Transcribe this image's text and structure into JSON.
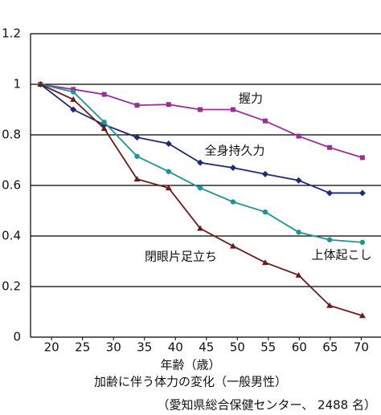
{
  "chart_data": {
    "type": "line",
    "xlabel": "年齢（歳）",
    "subtitle": "加齢に伴う体力の変化（一般男性）",
    "source": "（愛知県総合保健センター、 2488 名）",
    "x": [
      18.2,
      23.5,
      28.5,
      33.8,
      38.9,
      44,
      49.3,
      54.5,
      59.9,
      64.9,
      70.2
    ],
    "series": [
      {
        "name": "握力",
        "color": "#9b2f96",
        "marker": "square",
        "values": [
          1.0,
          0.98,
          0.96,
          0.917,
          0.92,
          0.9,
          0.9,
          0.855,
          0.795,
          0.75,
          0.71
        ]
      },
      {
        "name": "全身持久力",
        "color": "#1f2a78",
        "marker": "diamond",
        "values": [
          1.0,
          0.9,
          0.84,
          0.79,
          0.765,
          0.69,
          0.67,
          0.645,
          0.62,
          0.57,
          0.57
        ]
      },
      {
        "name": "上体起こし",
        "color": "#1f9593",
        "marker": "circle",
        "values": [
          1.0,
          0.97,
          0.85,
          0.715,
          0.655,
          0.59,
          0.535,
          0.495,
          0.415,
          0.385,
          0.375
        ]
      },
      {
        "name": "閉眼片足立ち",
        "color": "#6e1a1a",
        "marker": "triangle",
        "values": [
          1.0,
          0.94,
          0.825,
          0.625,
          0.59,
          0.43,
          0.36,
          0.295,
          0.245,
          0.125,
          0.085
        ]
      }
    ],
    "xlim": [
      16.6,
      73.2
    ],
    "xticks": [
      20,
      25,
      30,
      35,
      40,
      45,
      50,
      55,
      60,
      65,
      70
    ],
    "ylim": [
      0,
      1.2
    ],
    "yticks": [
      0,
      0.2,
      0.4,
      0.6,
      0.8,
      1,
      1.2
    ],
    "grid": true
  }
}
